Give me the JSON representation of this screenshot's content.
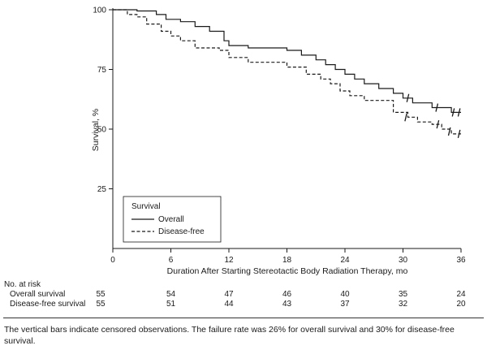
{
  "chart_data": {
    "type": "line",
    "ylabel": "Survival, %",
    "xlabel": "Duration After Starting Stereotactic Body Radiation Therapy, mo",
    "xlim": [
      0,
      36
    ],
    "ylim": [
      0,
      100
    ],
    "xticks": [
      0,
      6,
      12,
      18,
      24,
      30,
      36
    ],
    "yticks": [
      25,
      50,
      75,
      100
    ],
    "legend": {
      "title": "Survival",
      "placement": "bottom-left",
      "entries": [
        "Overall",
        "Disease-free"
      ]
    },
    "series": [
      {
        "name": "Overall",
        "style": "solid",
        "points": [
          [
            0,
            100
          ],
          [
            2.5,
            100
          ],
          [
            2.5,
            99.5
          ],
          [
            4.5,
            99.5
          ],
          [
            4.5,
            98
          ],
          [
            5.5,
            98
          ],
          [
            5.5,
            96
          ],
          [
            7,
            96
          ],
          [
            7,
            95
          ],
          [
            8.5,
            95
          ],
          [
            8.5,
            93
          ],
          [
            10,
            93
          ],
          [
            10,
            91
          ],
          [
            11.5,
            91
          ],
          [
            11.5,
            87
          ],
          [
            12,
            87
          ],
          [
            12,
            85
          ],
          [
            14,
            85
          ],
          [
            14,
            84
          ],
          [
            18,
            84
          ],
          [
            18,
            83
          ],
          [
            19.5,
            83
          ],
          [
            19.5,
            81
          ],
          [
            21,
            81
          ],
          [
            21,
            79
          ],
          [
            22,
            79
          ],
          [
            22,
            77
          ],
          [
            23,
            77
          ],
          [
            23,
            75
          ],
          [
            24,
            75
          ],
          [
            24,
            73
          ],
          [
            25,
            73
          ],
          [
            25,
            71
          ],
          [
            26,
            71
          ],
          [
            26,
            69
          ],
          [
            27.5,
            69
          ],
          [
            27.5,
            67
          ],
          [
            29,
            67
          ],
          [
            29,
            65
          ],
          [
            30,
            65
          ],
          [
            30,
            63
          ],
          [
            31,
            63
          ],
          [
            31,
            61
          ],
          [
            33,
            61
          ],
          [
            33,
            59
          ],
          [
            35,
            59
          ],
          [
            35,
            57
          ],
          [
            36,
            57
          ]
        ],
        "censored": [
          [
            30.5,
            63
          ],
          [
            33.5,
            59
          ],
          [
            35.2,
            57
          ],
          [
            35.8,
            57
          ]
        ]
      },
      {
        "name": "Disease-free",
        "style": "dashed",
        "points": [
          [
            0,
            100
          ],
          [
            1.5,
            100
          ],
          [
            1.5,
            98
          ],
          [
            2.5,
            98
          ],
          [
            2.5,
            97
          ],
          [
            3.5,
            97
          ],
          [
            3.5,
            94
          ],
          [
            5,
            94
          ],
          [
            5,
            91
          ],
          [
            6,
            91
          ],
          [
            6,
            89
          ],
          [
            7,
            89
          ],
          [
            7,
            87
          ],
          [
            8.5,
            87
          ],
          [
            8.5,
            84
          ],
          [
            11,
            84
          ],
          [
            11,
            83
          ],
          [
            12,
            83
          ],
          [
            12,
            80
          ],
          [
            14,
            80
          ],
          [
            14,
            78
          ],
          [
            18,
            78
          ],
          [
            18,
            76
          ],
          [
            20,
            76
          ],
          [
            20,
            73
          ],
          [
            21.5,
            73
          ],
          [
            21.5,
            71
          ],
          [
            22.5,
            71
          ],
          [
            22.5,
            69
          ],
          [
            23.5,
            69
          ],
          [
            23.5,
            66
          ],
          [
            24.5,
            66
          ],
          [
            24.5,
            64
          ],
          [
            26,
            64
          ],
          [
            26,
            62
          ],
          [
            29,
            62
          ],
          [
            29,
            57
          ],
          [
            30.5,
            57
          ],
          [
            30.5,
            55
          ],
          [
            31.5,
            55
          ],
          [
            31.5,
            53
          ],
          [
            33,
            53
          ],
          [
            33,
            52
          ],
          [
            34,
            52
          ],
          [
            34,
            50
          ],
          [
            35,
            50
          ],
          [
            35,
            48
          ],
          [
            36,
            48
          ]
        ],
        "censored": [
          [
            30.3,
            55
          ],
          [
            33.6,
            52
          ],
          [
            34.8,
            49
          ],
          [
            35.8,
            48
          ]
        ]
      }
    ],
    "risk_table": {
      "heading": "No. at risk",
      "times": [
        0,
        6,
        12,
        18,
        24,
        30,
        36
      ],
      "rows": [
        {
          "label": "Overall survival",
          "values": [
            "55",
            "54",
            "47",
            "46",
            "40",
            "35",
            "24"
          ]
        },
        {
          "label": "Disease-free survival",
          "values": [
            "55",
            "51",
            "44",
            "43",
            "37",
            "32",
            "20"
          ]
        }
      ]
    }
  },
  "footnote": "The vertical bars indicate censored observations. The failure rate was 26% for overall survival and 30% for disease-free survival."
}
